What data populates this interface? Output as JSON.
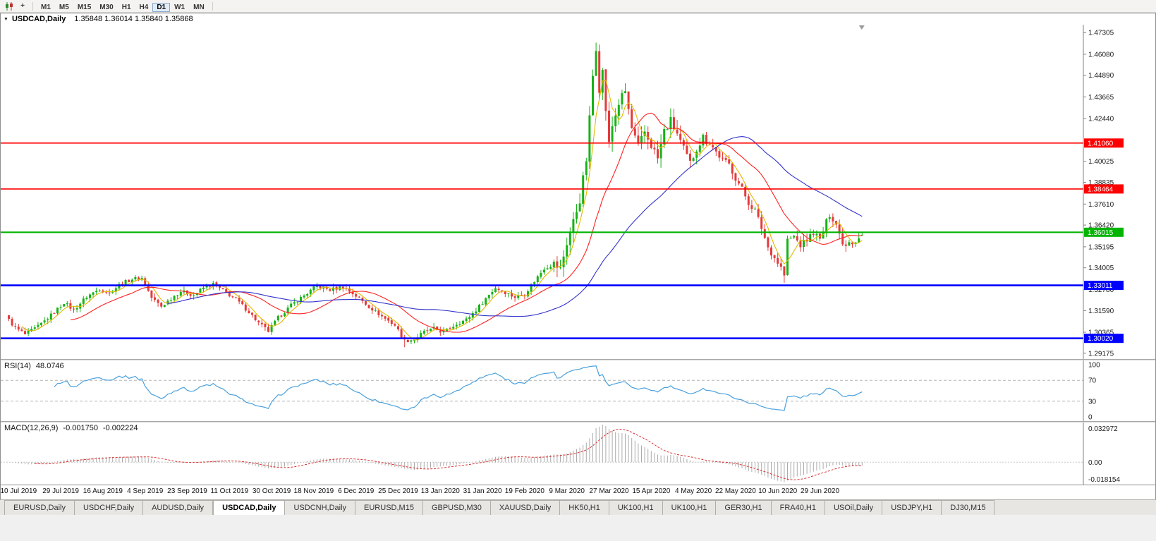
{
  "toolbar": {
    "timeframes": [
      "M1",
      "M5",
      "M15",
      "M30",
      "H1",
      "H4",
      "D1",
      "W1",
      "MN"
    ],
    "active_timeframe": "D1"
  },
  "chart_window": {
    "symbol_period": "USDCAD,Daily",
    "ohlc_text": "1.35848 1.36014 1.35840 1.35868"
  },
  "panels": {
    "rsi": {
      "label": "RSI(14)",
      "value": "48.0746"
    },
    "macd": {
      "label": "MACD(12,26,9)",
      "value_main": "-0.001750",
      "value_signal": "-0.002224"
    }
  },
  "tabs": [
    "EURUSD,Daily",
    "USDCHF,Daily",
    "AUDUSD,Daily",
    "USDCAD,Daily",
    "USDCNH,Daily",
    "EURUSD,M15",
    "GBPUSD,M30",
    "XAUUSD,Daily",
    "HK50,H1",
    "UK100,H1",
    "UK100,H1",
    "GER30,H1",
    "FRA40,H1",
    "USOil,Daily",
    "USDJPY,H1",
    "DJ30,M15"
  ],
  "active_tab_index": 3,
  "colors": {
    "up": "#17b217",
    "down": "#e43b3b",
    "ma_fast": "#e2b900",
    "ma_mid": "#ff2222",
    "ma_slow": "#3333cc",
    "rsi": "#4aa0dc",
    "rsi_level": "#b4b4b4",
    "macd_hist": "#ababab",
    "macd_signal": "#d93030",
    "axis_line": "#808080",
    "label_text": "#1a1a1a"
  },
  "chart_data": {
    "type": "candlestick",
    "symbol": "USDCAD",
    "timeframe": "Daily",
    "last_candle_ohlc": {
      "open": 1.35848,
      "high": 1.36014,
      "low": 1.3584,
      "close": 1.35868
    },
    "candle_count": 264,
    "price_range": [
      1.2885,
      1.4775
    ],
    "y_tick_labels": [
      "1.47305",
      "1.46080",
      "1.44890",
      "1.43665",
      "1.42440",
      "1.40025",
      "1.38835",
      "1.37610",
      "1.36420",
      "1.35195",
      "1.34005",
      "1.32780",
      "1.31590",
      "1.30365",
      "1.29175"
    ],
    "x_tick_labels": [
      "10 Jul 2019",
      "29 Jul 2019",
      "16 Aug 2019",
      "4 Sep 2019",
      "23 Sep 2019",
      "11 Oct 2019",
      "30 Oct 2019",
      "18 Nov 2019",
      "6 Dec 2019",
      "25 Dec 2019",
      "13 Jan 2020",
      "31 Jan 2020",
      "19 Feb 2020",
      "9 Mar 2020",
      "27 Mar 2020",
      "15 Apr 2020",
      "4 May 2020",
      "22 May 2020",
      "10 Jun 2020",
      "29 Jun 2020"
    ],
    "x_tick_indices": [
      3,
      16,
      29,
      42,
      55,
      68,
      81,
      94,
      107,
      120,
      133,
      146,
      159,
      172,
      185,
      198,
      211,
      224,
      237,
      250
    ],
    "anchor_closes": [
      [
        0,
        1.3105
      ],
      [
        2,
        1.3062
      ],
      [
        5,
        1.3024
      ],
      [
        9,
        1.3068
      ],
      [
        13,
        1.3132
      ],
      [
        17,
        1.3205
      ],
      [
        20,
        1.3162
      ],
      [
        24,
        1.3238
      ],
      [
        28,
        1.3282
      ],
      [
        31,
        1.3258
      ],
      [
        34,
        1.3304
      ],
      [
        38,
        1.3338
      ],
      [
        41,
        1.3342
      ],
      [
        44,
        1.3232
      ],
      [
        47,
        1.3182
      ],
      [
        50,
        1.3228
      ],
      [
        53,
        1.3268
      ],
      [
        57,
        1.3246
      ],
      [
        60,
        1.3288
      ],
      [
        63,
        1.3308
      ],
      [
        66,
        1.3272
      ],
      [
        70,
        1.3222
      ],
      [
        74,
        1.3152
      ],
      [
        77,
        1.3088
      ],
      [
        80,
        1.3042
      ],
      [
        83,
        1.3118
      ],
      [
        87,
        1.3188
      ],
      [
        91,
        1.3244
      ],
      [
        95,
        1.3298
      ],
      [
        99,
        1.3276
      ],
      [
        103,
        1.3294
      ],
      [
        107,
        1.3242
      ],
      [
        111,
        1.3182
      ],
      [
        115,
        1.3126
      ],
      [
        119,
        1.3076
      ],
      [
        122,
        1.2988
      ],
      [
        125,
        1.2996
      ],
      [
        128,
        1.3038
      ],
      [
        131,
        1.3056
      ],
      [
        134,
        1.3036
      ],
      [
        138,
        1.3084
      ],
      [
        141,
        1.3108
      ],
      [
        144,
        1.3162
      ],
      [
        147,
        1.3228
      ],
      [
        150,
        1.3288
      ],
      [
        153,
        1.3262
      ],
      [
        156,
        1.3234
      ],
      [
        159,
        1.3252
      ],
      [
        162,
        1.3326
      ],
      [
        165,
        1.3398
      ],
      [
        168,
        1.3422
      ],
      [
        170,
        1.3394
      ],
      [
        172,
        1.3542
      ],
      [
        174,
        1.3662
      ],
      [
        176,
        1.3788
      ],
      [
        178,
        1.4012
      ],
      [
        179,
        1.4242
      ],
      [
        180,
        1.4486
      ],
      [
        181,
        1.4652
      ],
      [
        182,
        1.4418
      ],
      [
        183,
        1.4508
      ],
      [
        184,
        1.4296
      ],
      [
        185,
        1.4096
      ],
      [
        186,
        1.4202
      ],
      [
        188,
        1.4332
      ],
      [
        190,
        1.4398
      ],
      [
        192,
        1.4186
      ],
      [
        194,
        1.4078
      ],
      [
        196,
        1.4168
      ],
      [
        198,
        1.4096
      ],
      [
        200,
        1.4018
      ],
      [
        202,
        1.4172
      ],
      [
        204,
        1.4228
      ],
      [
        206,
        1.4158
      ],
      [
        208,
        1.4066
      ],
      [
        210,
        1.3988
      ],
      [
        212,
        1.4082
      ],
      [
        214,
        1.4138
      ],
      [
        216,
        1.4108
      ],
      [
        218,
        1.4056
      ],
      [
        220,
        1.4008
      ],
      [
        222,
        1.3986
      ],
      [
        224,
        1.3908
      ],
      [
        226,
        1.3846
      ],
      [
        228,
        1.3768
      ],
      [
        230,
        1.3726
      ],
      [
        232,
        1.3626
      ],
      [
        234,
        1.3516
      ],
      [
        236,
        1.3458
      ],
      [
        238,
        1.3402
      ],
      [
        239,
        1.3358
      ],
      [
        240,
        1.3556
      ],
      [
        242,
        1.3578
      ],
      [
        244,
        1.3528
      ],
      [
        246,
        1.3558
      ],
      [
        248,
        1.3602
      ],
      [
        250,
        1.3558
      ],
      [
        252,
        1.3658
      ],
      [
        253,
        1.3702
      ],
      [
        254,
        1.3678
      ],
      [
        255,
        1.3648
      ],
      [
        256,
        1.3592
      ],
      [
        257,
        1.3548
      ],
      [
        258,
        1.3528
      ],
      [
        259,
        1.3558
      ],
      [
        260,
        1.3544
      ],
      [
        261,
        1.3556
      ],
      [
        262,
        1.3574
      ],
      [
        263,
        1.35868
      ]
    ],
    "key_extremes": [
      {
        "idx": 181,
        "high": 1.4668
      },
      {
        "idx": 122,
        "low": 1.2952
      },
      {
        "idx": 239,
        "low": 1.3316
      }
    ],
    "horizontal_lines": [
      {
        "price": 1.4106,
        "label": "1.41060",
        "color": "#ff0000",
        "thickness": 1.6
      },
      {
        "price": 1.38464,
        "label": "1.38464",
        "color": "#ff0000",
        "thickness": 1.6
      },
      {
        "price": 1.36015,
        "label": "1.36015",
        "color": "#00b400",
        "thickness": 2.2
      },
      {
        "price": 1.33011,
        "label": "1.33011",
        "color": "#0000ff",
        "thickness": 2.6
      },
      {
        "price": 1.3002,
        "label": "1.30020",
        "color": "#0000ff",
        "thickness": 2.6
      }
    ],
    "moving_averages": [
      {
        "period": 5,
        "color": "#e2b900"
      },
      {
        "period": 20,
        "color": "#ff2222"
      },
      {
        "period": 50,
        "color": "#3333cc"
      }
    ],
    "rsi": {
      "period": 14,
      "current": 48.0746,
      "levels": [
        70,
        30
      ],
      "axis_labels": [
        "100",
        "70",
        "30",
        "0"
      ]
    },
    "macd": {
      "fast": 12,
      "slow": 26,
      "signal": 9,
      "current_main": -0.00175,
      "current_signal": -0.002224,
      "axis_labels": [
        "0.032972",
        "0.00",
        "-0.018154"
      ]
    }
  }
}
